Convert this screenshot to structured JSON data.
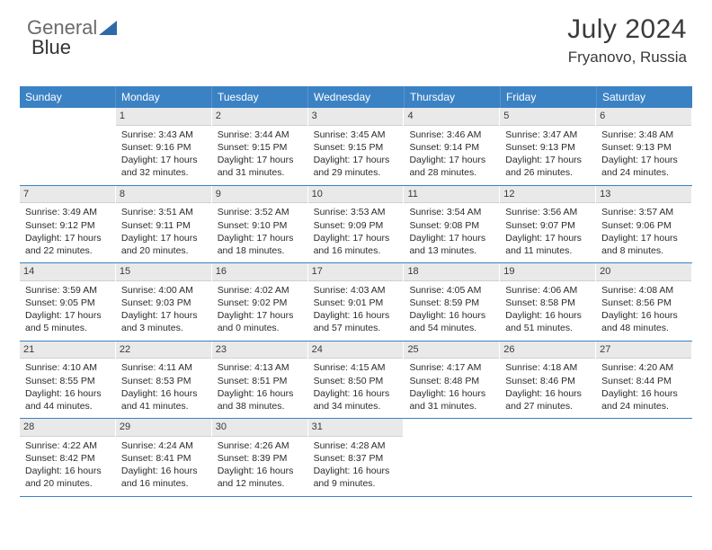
{
  "logo": {
    "part1": "General",
    "part2": "Blue"
  },
  "header": {
    "title": "July 2024",
    "location": "Fryanovo, Russia"
  },
  "style": {
    "header_bg": "#3b82c4",
    "header_text": "#ffffff",
    "daynum_bg": "#e9e9e9",
    "border_color": "#3b82c4",
    "title_fontsize": 30,
    "location_fontsize": 17,
    "cell_fontsize": 10.5
  },
  "day_names": [
    "Sunday",
    "Monday",
    "Tuesday",
    "Wednesday",
    "Thursday",
    "Friday",
    "Saturday"
  ],
  "weeks": [
    [
      {
        "num": "",
        "empty": true
      },
      {
        "num": "1",
        "sunrise": "Sunrise: 3:43 AM",
        "sunset": "Sunset: 9:16 PM",
        "daylight": "Daylight: 17 hours and 32 minutes."
      },
      {
        "num": "2",
        "sunrise": "Sunrise: 3:44 AM",
        "sunset": "Sunset: 9:15 PM",
        "daylight": "Daylight: 17 hours and 31 minutes."
      },
      {
        "num": "3",
        "sunrise": "Sunrise: 3:45 AM",
        "sunset": "Sunset: 9:15 PM",
        "daylight": "Daylight: 17 hours and 29 minutes."
      },
      {
        "num": "4",
        "sunrise": "Sunrise: 3:46 AM",
        "sunset": "Sunset: 9:14 PM",
        "daylight": "Daylight: 17 hours and 28 minutes."
      },
      {
        "num": "5",
        "sunrise": "Sunrise: 3:47 AM",
        "sunset": "Sunset: 9:13 PM",
        "daylight": "Daylight: 17 hours and 26 minutes."
      },
      {
        "num": "6",
        "sunrise": "Sunrise: 3:48 AM",
        "sunset": "Sunset: 9:13 PM",
        "daylight": "Daylight: 17 hours and 24 minutes."
      }
    ],
    [
      {
        "num": "7",
        "sunrise": "Sunrise: 3:49 AM",
        "sunset": "Sunset: 9:12 PM",
        "daylight": "Daylight: 17 hours and 22 minutes."
      },
      {
        "num": "8",
        "sunrise": "Sunrise: 3:51 AM",
        "sunset": "Sunset: 9:11 PM",
        "daylight": "Daylight: 17 hours and 20 minutes."
      },
      {
        "num": "9",
        "sunrise": "Sunrise: 3:52 AM",
        "sunset": "Sunset: 9:10 PM",
        "daylight": "Daylight: 17 hours and 18 minutes."
      },
      {
        "num": "10",
        "sunrise": "Sunrise: 3:53 AM",
        "sunset": "Sunset: 9:09 PM",
        "daylight": "Daylight: 17 hours and 16 minutes."
      },
      {
        "num": "11",
        "sunrise": "Sunrise: 3:54 AM",
        "sunset": "Sunset: 9:08 PM",
        "daylight": "Daylight: 17 hours and 13 minutes."
      },
      {
        "num": "12",
        "sunrise": "Sunrise: 3:56 AM",
        "sunset": "Sunset: 9:07 PM",
        "daylight": "Daylight: 17 hours and 11 minutes."
      },
      {
        "num": "13",
        "sunrise": "Sunrise: 3:57 AM",
        "sunset": "Sunset: 9:06 PM",
        "daylight": "Daylight: 17 hours and 8 minutes."
      }
    ],
    [
      {
        "num": "14",
        "sunrise": "Sunrise: 3:59 AM",
        "sunset": "Sunset: 9:05 PM",
        "daylight": "Daylight: 17 hours and 5 minutes."
      },
      {
        "num": "15",
        "sunrise": "Sunrise: 4:00 AM",
        "sunset": "Sunset: 9:03 PM",
        "daylight": "Daylight: 17 hours and 3 minutes."
      },
      {
        "num": "16",
        "sunrise": "Sunrise: 4:02 AM",
        "sunset": "Sunset: 9:02 PM",
        "daylight": "Daylight: 17 hours and 0 minutes."
      },
      {
        "num": "17",
        "sunrise": "Sunrise: 4:03 AM",
        "sunset": "Sunset: 9:01 PM",
        "daylight": "Daylight: 16 hours and 57 minutes."
      },
      {
        "num": "18",
        "sunrise": "Sunrise: 4:05 AM",
        "sunset": "Sunset: 8:59 PM",
        "daylight": "Daylight: 16 hours and 54 minutes."
      },
      {
        "num": "19",
        "sunrise": "Sunrise: 4:06 AM",
        "sunset": "Sunset: 8:58 PM",
        "daylight": "Daylight: 16 hours and 51 minutes."
      },
      {
        "num": "20",
        "sunrise": "Sunrise: 4:08 AM",
        "sunset": "Sunset: 8:56 PM",
        "daylight": "Daylight: 16 hours and 48 minutes."
      }
    ],
    [
      {
        "num": "21",
        "sunrise": "Sunrise: 4:10 AM",
        "sunset": "Sunset: 8:55 PM",
        "daylight": "Daylight: 16 hours and 44 minutes."
      },
      {
        "num": "22",
        "sunrise": "Sunrise: 4:11 AM",
        "sunset": "Sunset: 8:53 PM",
        "daylight": "Daylight: 16 hours and 41 minutes."
      },
      {
        "num": "23",
        "sunrise": "Sunrise: 4:13 AM",
        "sunset": "Sunset: 8:51 PM",
        "daylight": "Daylight: 16 hours and 38 minutes."
      },
      {
        "num": "24",
        "sunrise": "Sunrise: 4:15 AM",
        "sunset": "Sunset: 8:50 PM",
        "daylight": "Daylight: 16 hours and 34 minutes."
      },
      {
        "num": "25",
        "sunrise": "Sunrise: 4:17 AM",
        "sunset": "Sunset: 8:48 PM",
        "daylight": "Daylight: 16 hours and 31 minutes."
      },
      {
        "num": "26",
        "sunrise": "Sunrise: 4:18 AM",
        "sunset": "Sunset: 8:46 PM",
        "daylight": "Daylight: 16 hours and 27 minutes."
      },
      {
        "num": "27",
        "sunrise": "Sunrise: 4:20 AM",
        "sunset": "Sunset: 8:44 PM",
        "daylight": "Daylight: 16 hours and 24 minutes."
      }
    ],
    [
      {
        "num": "28",
        "sunrise": "Sunrise: 4:22 AM",
        "sunset": "Sunset: 8:42 PM",
        "daylight": "Daylight: 16 hours and 20 minutes."
      },
      {
        "num": "29",
        "sunrise": "Sunrise: 4:24 AM",
        "sunset": "Sunset: 8:41 PM",
        "daylight": "Daylight: 16 hours and 16 minutes."
      },
      {
        "num": "30",
        "sunrise": "Sunrise: 4:26 AM",
        "sunset": "Sunset: 8:39 PM",
        "daylight": "Daylight: 16 hours and 12 minutes."
      },
      {
        "num": "31",
        "sunrise": "Sunrise: 4:28 AM",
        "sunset": "Sunset: 8:37 PM",
        "daylight": "Daylight: 16 hours and 9 minutes."
      },
      {
        "num": "",
        "empty": true
      },
      {
        "num": "",
        "empty": true
      },
      {
        "num": "",
        "empty": true
      }
    ]
  ]
}
